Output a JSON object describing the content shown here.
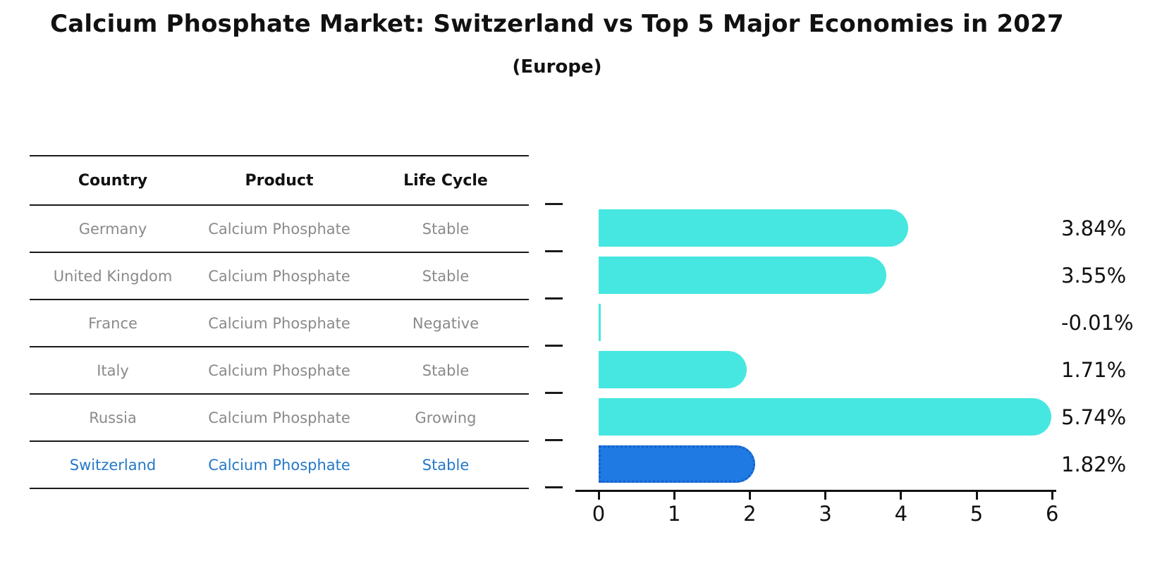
{
  "title": "Calcium Phosphate Market: Switzerland vs Top 5 Major Economies in 2027",
  "subtitle": "(Europe)",
  "table": {
    "headers": [
      "Country",
      "Product",
      "Life Cycle"
    ],
    "rows": [
      {
        "country": "Germany",
        "product": "Calcium Phosphate",
        "life_cycle": "Stable",
        "highlight": false
      },
      {
        "country": "United Kingdom",
        "product": "Calcium Phosphate",
        "life_cycle": "Stable",
        "highlight": false
      },
      {
        "country": "France",
        "product": "Calcium Phosphate",
        "life_cycle": "Negative",
        "highlight": false
      },
      {
        "country": "Italy",
        "product": "Calcium Phosphate",
        "life_cycle": "Stable",
        "highlight": false
      },
      {
        "country": "Russia",
        "product": "Calcium Phosphate",
        "life_cycle": "Growing",
        "highlight": false
      },
      {
        "country": "Switzerland",
        "product": "Calcium Phosphate",
        "life_cycle": "Stable",
        "highlight": true
      }
    ]
  },
  "chart_data": {
    "type": "bar",
    "orientation": "horizontal",
    "title": "Calcium Phosphate Market: Switzerland vs Top 5 Major Economies in 2027 (Europe)",
    "categories": [
      "Germany",
      "United Kingdom",
      "France",
      "Italy",
      "Russia",
      "Switzerland"
    ],
    "values": [
      3.84,
      3.55,
      -0.01,
      1.71,
      5.74,
      1.82
    ],
    "value_labels": [
      "3.84%",
      "3.55%",
      "-0.01%",
      "1.71%",
      "5.74%",
      "1.82%"
    ],
    "xlim": [
      0,
      6
    ],
    "x_ticks": [
      "0",
      "1",
      "2",
      "3",
      "4",
      "5",
      "6"
    ],
    "grid": false,
    "legend": false,
    "highlight_index": 5
  },
  "colors": {
    "bar": "#46e7e0",
    "highlight_bar": "#1f7ae3",
    "highlight_border": "#1460cc",
    "highlight_text": "#2478c8",
    "muted_text": "#8a8a8a",
    "axis": "#111111"
  }
}
